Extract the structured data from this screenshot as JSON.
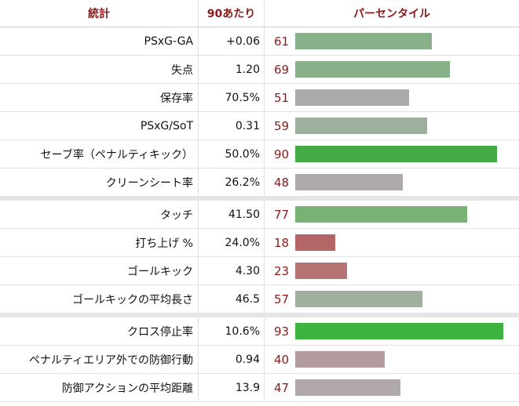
{
  "table": {
    "headers": [
      "統計",
      "90あたり",
      "パーセンタイル"
    ],
    "sections": [
      {
        "rows": [
          {
            "stat": "PSxG-GA",
            "per90": "+0.06",
            "percentile": 61,
            "color": "#88b089"
          },
          {
            "stat": "失点",
            "per90": "1.20",
            "percentile": 69,
            "color": "#88b089"
          },
          {
            "stat": "保存率",
            "per90": "70.5%",
            "percentile": 51,
            "color": "#abaaaa"
          },
          {
            "stat": "PSxG/SoT",
            "per90": "0.31",
            "percentile": 59,
            "color": "#9cb09d"
          },
          {
            "stat": "セーブ率（ペナルティキック）",
            "per90": "50.0%",
            "percentile": 90,
            "color": "#45ab46"
          },
          {
            "stat": "クリーンシート率",
            "per90": "26.2%",
            "percentile": 48,
            "color": "#b0a9aa"
          }
        ]
      },
      {
        "rows": [
          {
            "stat": "タッチ",
            "per90": "41.50",
            "percentile": 77,
            "color": "#77b375"
          },
          {
            "stat": "打ち上げ %",
            "per90": "24.0%",
            "percentile": 18,
            "color": "#b46667"
          },
          {
            "stat": "ゴールキック",
            "per90": "4.30",
            "percentile": 23,
            "color": "#b57374"
          },
          {
            "stat": "ゴールキックの平均長さ",
            "per90": "46.5",
            "percentile": 57,
            "color": "#9fb09f"
          }
        ]
      },
      {
        "rows": [
          {
            "stat": "クロス停止率",
            "per90": "10.6%",
            "percentile": 93,
            "color": "#3fb33f"
          },
          {
            "stat": "ペナルティエリア外での防御行動",
            "per90": "0.94",
            "percentile": 40,
            "color": "#b29c9d"
          },
          {
            "stat": "防御アクションの平均距離",
            "per90": "13.9",
            "percentile": 47,
            "color": "#b0a8a9"
          }
        ]
      }
    ]
  }
}
